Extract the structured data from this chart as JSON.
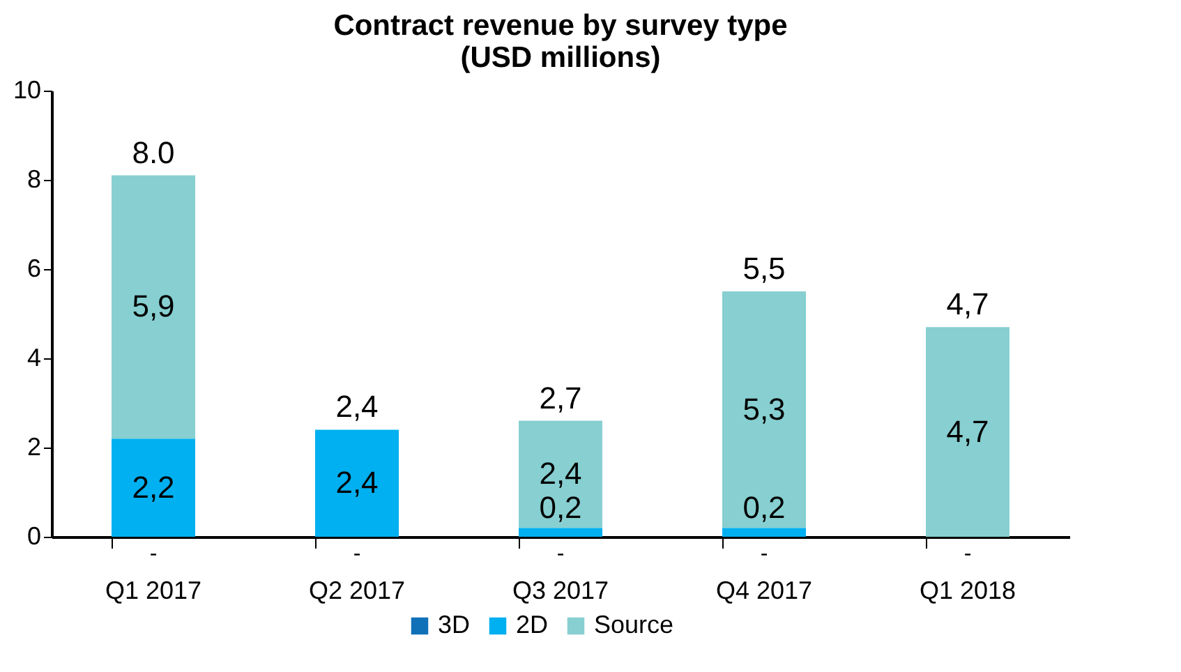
{
  "chart_data": {
    "type": "bar",
    "title": "Contract revenue by survey type\n(USD millions)",
    "stacked": true,
    "categories": [
      "Q1 2017",
      "Q2 2017",
      "Q3 2017",
      "Q4 2017",
      "Q1 2018"
    ],
    "series": [
      {
        "name": "3D",
        "color": "#1070b8",
        "values": [
          0,
          0,
          0,
          0,
          0
        ],
        "value_labels": [
          "-",
          "-",
          "-",
          "-",
          "-"
        ]
      },
      {
        "name": "2D",
        "color": "#00b0f0",
        "values": [
          2.2,
          2.4,
          0.2,
          0.2,
          0
        ],
        "value_labels": [
          "2,2",
          "2,4",
          "0,2",
          "0,2",
          null
        ]
      },
      {
        "name": "Source",
        "color": "#87cfd1",
        "values": [
          5.9,
          0,
          2.4,
          5.3,
          4.7
        ],
        "value_labels": [
          "5,9",
          null,
          "2,4",
          "5,3",
          "4,7"
        ]
      }
    ],
    "totals": [
      "8.0",
      "2,4",
      "2,7",
      "5,5",
      "4,7"
    ],
    "ylim": [
      0,
      10
    ],
    "yticks": [
      0,
      2,
      4,
      6,
      8,
      10
    ],
    "grid": false,
    "legend": "bottom"
  }
}
